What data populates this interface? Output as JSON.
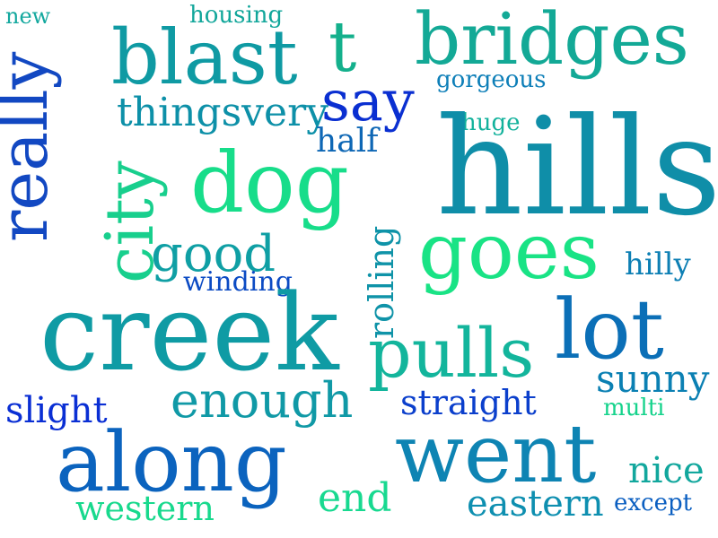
{
  "words": [
    {
      "text": "new",
      "color": "#13a89e"
    },
    {
      "text": "housing",
      "color": "#11a69a"
    },
    {
      "text": "blast",
      "color": "#0f9aa3"
    },
    {
      "text": "t",
      "color": "#14b08c"
    },
    {
      "text": "bridges",
      "color": "#13a996"
    },
    {
      "text": "really",
      "color": "#1248c2"
    },
    {
      "text": "say",
      "color": "#0a2fd1"
    },
    {
      "text": "gorgeous",
      "color": "#0e7fb8"
    },
    {
      "text": "thingsvery",
      "color": "#0d90a8"
    },
    {
      "text": "huge",
      "color": "#13b29c"
    },
    {
      "text": "half",
      "color": "#0e67b5"
    },
    {
      "text": "hills",
      "color": "#0f8ea8"
    },
    {
      "text": "city",
      "color": "#18cf8d"
    },
    {
      "text": "dog",
      "color": "#17dd8a"
    },
    {
      "text": "good",
      "color": "#0f9fa4"
    },
    {
      "text": "rolling",
      "color": "#0f93a8"
    },
    {
      "text": "goes",
      "color": "#19e385"
    },
    {
      "text": "hilly",
      "color": "#0d7fb4"
    },
    {
      "text": "winding",
      "color": "#0c4bc4"
    },
    {
      "text": "creek",
      "color": "#0f9ba4"
    },
    {
      "text": "lot",
      "color": "#0b6fb7"
    },
    {
      "text": "pulls",
      "color": "#13b59c"
    },
    {
      "text": "sunny",
      "color": "#0b80b3"
    },
    {
      "text": "enough",
      "color": "#1099a6"
    },
    {
      "text": "slight",
      "color": "#0a2fd4"
    },
    {
      "text": "straight",
      "color": "#0b3fcc"
    },
    {
      "text": "multi",
      "color": "#16d38c"
    },
    {
      "text": "went",
      "color": "#0e84b3"
    },
    {
      "text": "along",
      "color": "#0b63be"
    },
    {
      "text": "nice",
      "color": "#12a79d"
    },
    {
      "text": "end",
      "color": "#18d990"
    },
    {
      "text": "eastern",
      "color": "#0e8fb0"
    },
    {
      "text": "except",
      "color": "#0b5fc1"
    },
    {
      "text": "western",
      "color": "#18d98d"
    }
  ]
}
